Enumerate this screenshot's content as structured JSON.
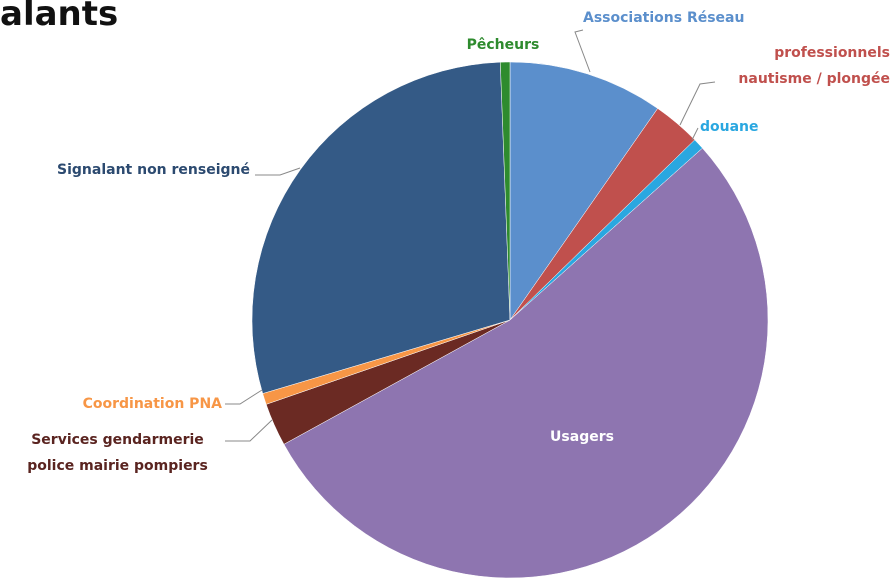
{
  "chart_data": {
    "type": "pie",
    "title": "alants",
    "categories": [
      "Associations Réseau",
      "professionnels nautisme / plongée",
      "douane",
      "Usagers",
      "Services gendarmerie police mairie pompiers",
      "Coordination PNA",
      "Signalant non renseigné",
      "Pêcheurs"
    ],
    "values": [
      9.7,
      3,
      0.7,
      53.6,
      2.7,
      0.7,
      29,
      0.6
    ],
    "colors": [
      "#5b8fcc",
      "#c0504d",
      "#2aa7e0",
      "#8e75b0",
      "#6b2a23",
      "#f79646",
      "#345a86",
      "#2e8b2e"
    ]
  }
}
